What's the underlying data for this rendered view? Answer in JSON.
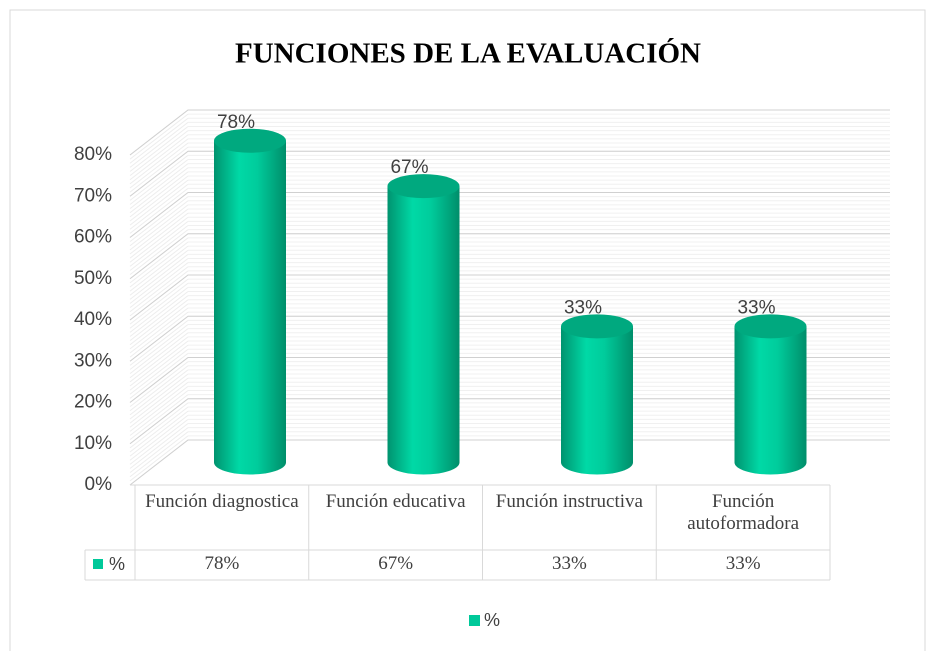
{
  "chart_data": {
    "type": "bar",
    "title": "FUNCIONES DE LA EVALUACIÓN",
    "categories": [
      "Función diagnostica",
      "Función educativa",
      "Función instructiva",
      "Función autoformadora"
    ],
    "series": [
      {
        "name": "%",
        "color": "#00c99a",
        "values": [
          78,
          67,
          33,
          33
        ],
        "value_labels": [
          "78%",
          "67%",
          "33%",
          "33%"
        ]
      }
    ],
    "ylim": [
      0,
      80
    ],
    "yticks": [
      {
        "value": 0,
        "label": "0%"
      },
      {
        "value": 10,
        "label": "10%"
      },
      {
        "value": 20,
        "label": "20%"
      },
      {
        "value": 30,
        "label": "30%"
      },
      {
        "value": 40,
        "label": "40%"
      },
      {
        "value": 50,
        "label": "50%"
      },
      {
        "value": 60,
        "label": "60%"
      },
      {
        "value": 70,
        "label": "70%"
      },
      {
        "value": 80,
        "label": "80%"
      }
    ],
    "grid": true,
    "legend": "bottom"
  }
}
